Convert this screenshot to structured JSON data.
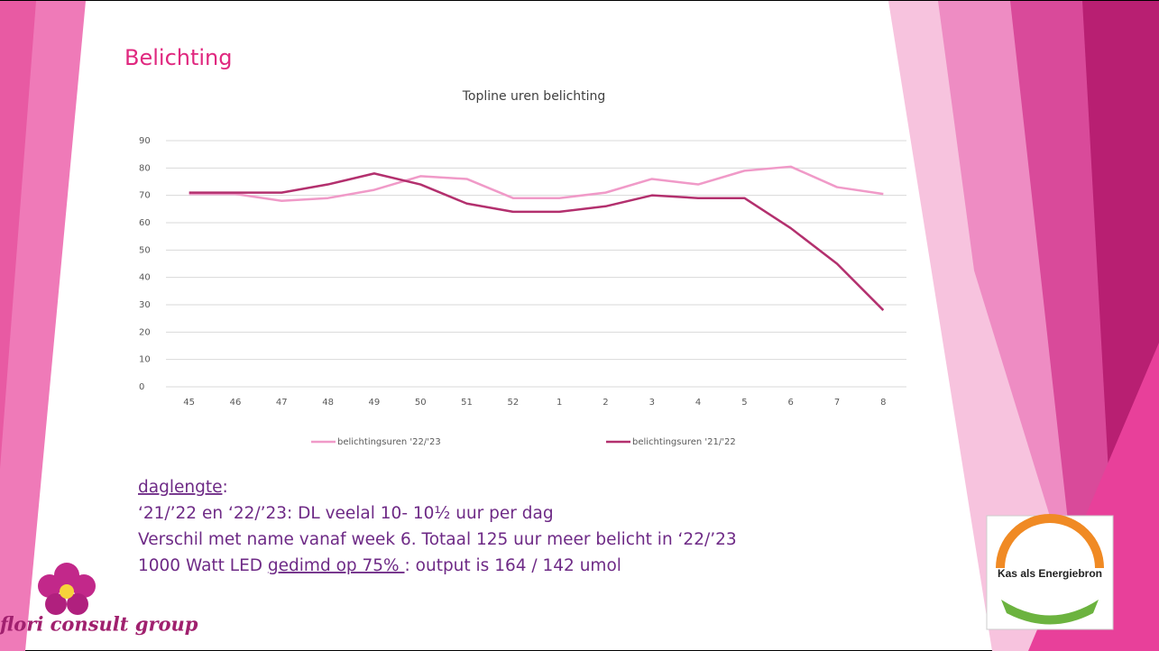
{
  "slide_title": "Belichting",
  "chart_data": {
    "type": "line",
    "title": "Topline uren belichting",
    "categories": [
      "45",
      "46",
      "47",
      "48",
      "49",
      "50",
      "51",
      "52",
      "1",
      "2",
      "3",
      "4",
      "5",
      "6",
      "7",
      "8"
    ],
    "series": [
      {
        "name": "belichtingsuren '22/'23",
        "color": "#f09ac8",
        "values": [
          70.5,
          70.5,
          68,
          69,
          72,
          77,
          76,
          69,
          69,
          71,
          76,
          74,
          79,
          80.5,
          73,
          70.5
        ]
      },
      {
        "name": "belichtingsuren '21/'22",
        "color": "#b3306e",
        "values": [
          71,
          71,
          71,
          74,
          78,
          74,
          67,
          64,
          64,
          66,
          70,
          69,
          69,
          58,
          45,
          28
        ]
      }
    ],
    "ylim": [
      0,
      90
    ],
    "yticks": [
      0,
      10,
      20,
      30,
      40,
      50,
      60,
      70,
      80,
      90
    ],
    "grid": true,
    "legend": "bottom"
  },
  "notes": [
    [
      "daglengte",
      ":"
    ],
    [
      "‘21/’22 en ‘22/’23: DL veelal 10- 10½ uur per dag"
    ],
    [
      "Verschil met name vanaf week 6. Totaal 125 uur meer belicht in ‘22/’23"
    ],
    [
      "1000 Watt LED ",
      "gedimd op 75% ",
      ": output is 164 / 142 umol"
    ]
  ],
  "logo_left": "flori consult group",
  "logo_right": "Kas als Energiebron"
}
